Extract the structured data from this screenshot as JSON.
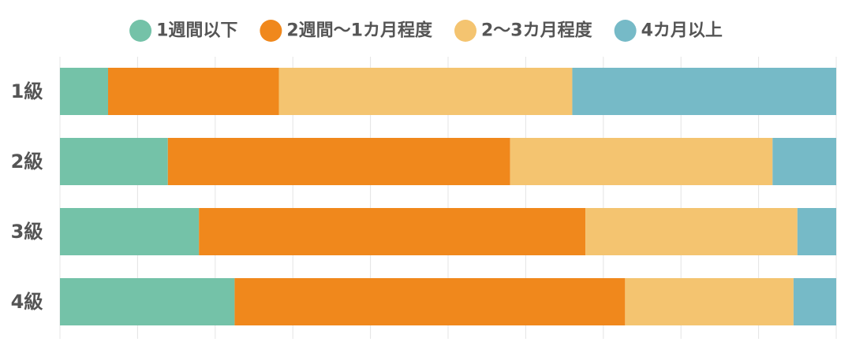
{
  "chart_data": {
    "type": "bar",
    "orientation": "horizontal",
    "stacked": "percent",
    "categories": [
      "1級",
      "2級",
      "3級",
      "4級"
    ],
    "series": [
      {
        "name": "1週間以下",
        "color": "#74c2a8",
        "values": [
          6.2,
          13.9,
          17.9,
          22.5
        ]
      },
      {
        "name": "2週間〜1カ月程度",
        "color": "#f0881c",
        "values": [
          22.0,
          44.1,
          49.8,
          50.3
        ]
      },
      {
        "name": "2〜3カ月程度",
        "color": "#f4c470",
        "values": [
          37.8,
          33.8,
          27.3,
          21.7
        ]
      },
      {
        "name": "4カ月以上",
        "color": "#76bac7",
        "values": [
          34.0,
          8.2,
          5.0,
          5.5
        ]
      }
    ],
    "xlim": [
      0,
      100
    ],
    "grid": true,
    "legend": "top"
  }
}
